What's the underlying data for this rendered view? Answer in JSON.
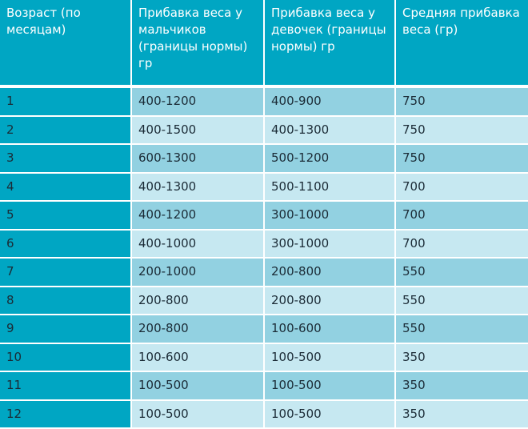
{
  "table": {
    "headers": [
      "Возраст (по месяцам)",
      "Прибавка веса у мальчиков (границы нормы) гр",
      "Прибавка веса у девочек (границы нормы) гр",
      "Средняя прибавка веса (гр)"
    ],
    "rows": [
      [
        "1",
        "400-1200",
        "400-900",
        "750"
      ],
      [
        "2",
        "400-1500",
        "400-1300",
        "750"
      ],
      [
        "3",
        "600-1300",
        "500-1200",
        "750"
      ],
      [
        "4",
        "400-1300",
        "500-1100",
        "700"
      ],
      [
        "5",
        "400-1200",
        "300-1000",
        "700"
      ],
      [
        "6",
        "400-1000",
        "300-1000",
        "700"
      ],
      [
        "7",
        "200-1000",
        "200-800",
        "550"
      ],
      [
        "8",
        "200-800",
        "200-800",
        "550"
      ],
      [
        "9",
        "200-800",
        "100-600",
        "550"
      ],
      [
        "10",
        "100-600",
        "100-500",
        "350"
      ],
      [
        "11",
        "100-500",
        "100-500",
        "350"
      ],
      [
        "12",
        "100-500",
        "100-500",
        "350"
      ]
    ]
  },
  "colors": {
    "header": "#00a6c3",
    "first_column": "#00a6c3",
    "row_odd": "#92d1e1",
    "row_even": "#c6e8f1"
  }
}
